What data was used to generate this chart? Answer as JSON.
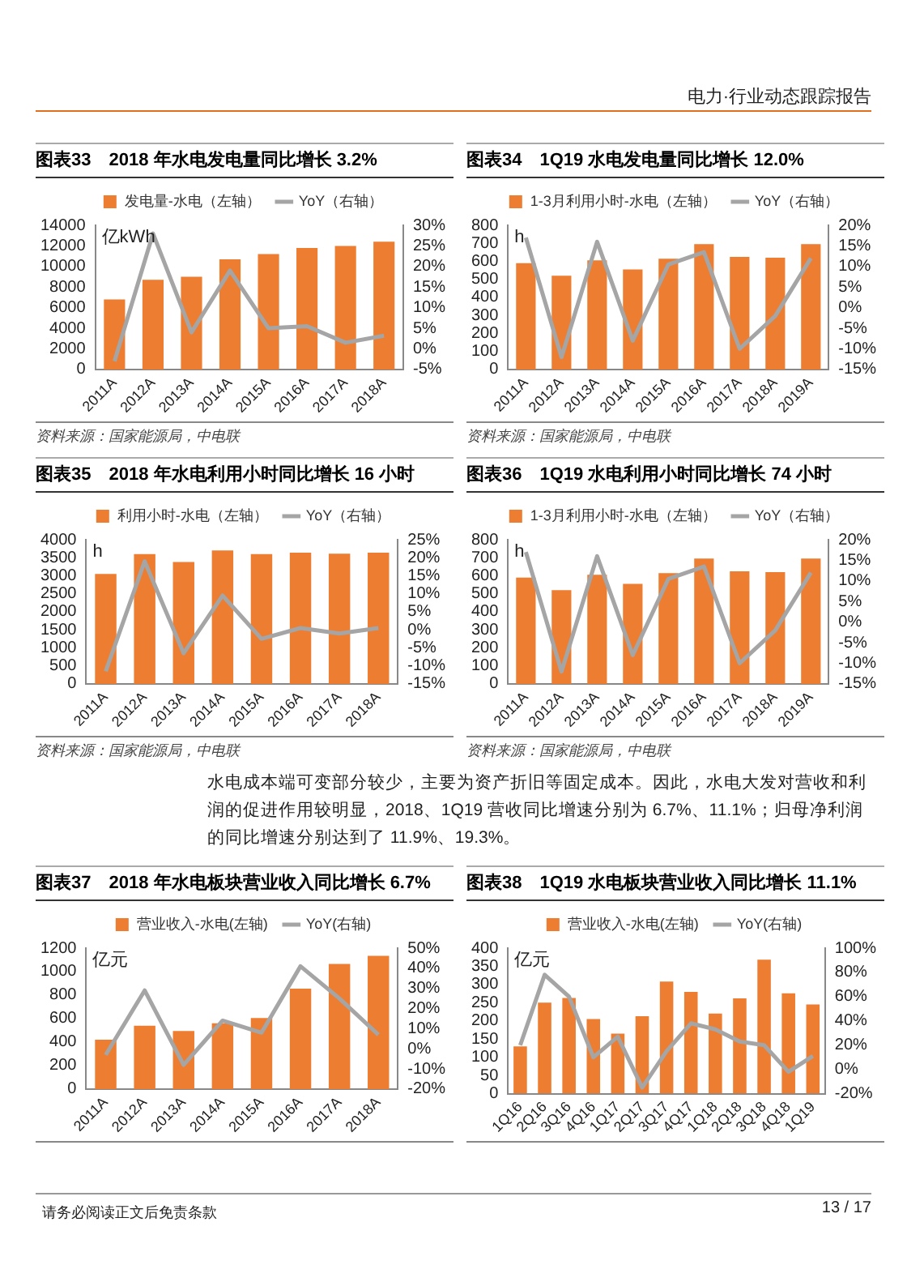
{
  "chart_data": [
    {
      "type": "bar",
      "title": "图表33　2018 年水电发电量同比增长 3.2%",
      "ylabel": "亿kWh",
      "categories": [
        "2011A",
        "2012A",
        "2013A",
        "2014A",
        "2015A",
        "2016A",
        "2017A",
        "2018A"
      ],
      "series": [
        {
          "name": "发电量-水电（左轴）",
          "type": "bar",
          "color": "#ed7d31",
          "values": [
            6800,
            8700,
            9000,
            10700,
            11200,
            11800,
            12000,
            12400
          ]
        },
        {
          "name": "YoY（右轴）",
          "type": "line",
          "axis": "y2",
          "color": "#a5a5a5",
          "values": [
            -3,
            28,
            4,
            19,
            5,
            5.5,
            1.5,
            3.2
          ]
        }
      ],
      "ylim": [
        0,
        14000
      ],
      "yticks": [
        0,
        2000,
        4000,
        6000,
        8000,
        10000,
        12000,
        14000
      ],
      "y2lim": [
        -5,
        30
      ],
      "y2ticks": [
        {
          "value": -5,
          "label": "-5%"
        },
        {
          "value": 0,
          "label": "0%"
        },
        {
          "value": 5,
          "label": "5%"
        },
        {
          "value": 10,
          "label": "10%"
        },
        {
          "value": 15,
          "label": "15%"
        },
        {
          "value": 20,
          "label": "20%"
        },
        {
          "value": 25,
          "label": "25%"
        },
        {
          "value": 30,
          "label": "30%"
        }
      ],
      "legend": "top",
      "marker": "none",
      "annotations": [
        "资料来源：国家能源局，中电联"
      ]
    },
    {
      "type": "bar",
      "title": "图表34　1Q19 水电发电量同比增长 12.0%",
      "ylabel": "h",
      "categories": [
        "2011A",
        "2012A",
        "2013A",
        "2014A",
        "2015A",
        "2016A",
        "2017A",
        "2018A",
        "2019A"
      ],
      "series": [
        {
          "name": "1-3月利用小时-水电（左轴）",
          "type": "bar",
          "color": "#ed7d31",
          "values": [
            590,
            520,
            605,
            555,
            615,
            695,
            625,
            620,
            695
          ]
        },
        {
          "name": "YoY（右轴）",
          "type": "line",
          "axis": "y2",
          "color": "#a5a5a5",
          "values": [
            17,
            -12,
            16,
            -8,
            10.5,
            13.5,
            -10,
            -2,
            12
          ]
        }
      ],
      "ylim": [
        0,
        800
      ],
      "yticks": [
        0,
        100,
        200,
        300,
        400,
        500,
        600,
        700,
        800
      ],
      "y2lim": [
        -15,
        20
      ],
      "y2ticks": [
        {
          "value": -15,
          "label": "-15%"
        },
        {
          "value": -10,
          "label": "-10%"
        },
        {
          "value": -5,
          "label": "-5%"
        },
        {
          "value": 0,
          "label": "0%"
        },
        {
          "value": 5,
          "label": "5%"
        },
        {
          "value": 10,
          "label": "10%"
        },
        {
          "value": 15,
          "label": "15%"
        },
        {
          "value": 20,
          "label": "20%"
        }
      ],
      "legend": "top",
      "marker": "none",
      "annotations": [
        "资料来源：国家能源局，中电联"
      ]
    },
    {
      "type": "bar",
      "title": "图表35　2018 年水电利用小时同比增长 16 小时",
      "ylabel": "h",
      "categories": [
        "2011A",
        "2012A",
        "2013A",
        "2014A",
        "2015A",
        "2016A",
        "2017A",
        "2018A"
      ],
      "series": [
        {
          "name": "利用小时-水电（左轴）",
          "type": "bar",
          "color": "#ed7d31",
          "values": [
            3050,
            3600,
            3380,
            3700,
            3600,
            3640,
            3610,
            3640
          ]
        },
        {
          "name": "YoY（右轴）",
          "type": "line",
          "axis": "y2",
          "color": "#a5a5a5",
          "values": [
            -11.5,
            19,
            -6.5,
            9.5,
            -2.5,
            0.5,
            -1,
            0.5
          ]
        }
      ],
      "ylim": [
        0,
        4000
      ],
      "yticks": [
        0,
        500,
        1000,
        1500,
        2000,
        2500,
        3000,
        3500,
        4000
      ],
      "y2lim": [
        -15,
        25
      ],
      "y2ticks": [
        {
          "value": -15,
          "label": "-15%"
        },
        {
          "value": -10,
          "label": "-10%"
        },
        {
          "value": -5,
          "label": "-5%"
        },
        {
          "value": 0,
          "label": "0%"
        },
        {
          "value": 5,
          "label": "5%"
        },
        {
          "value": 10,
          "label": "10%"
        },
        {
          "value": 15,
          "label": "15%"
        },
        {
          "value": 20,
          "label": "20%"
        },
        {
          "value": 25,
          "label": "25%"
        }
      ],
      "legend": "top",
      "marker": "none",
      "annotations": [
        "资料来源：国家能源局，中电联"
      ]
    },
    {
      "type": "bar",
      "title": "图表36　1Q19 水电利用小时同比增长 74 小时",
      "ylabel": "h",
      "categories": [
        "2011A",
        "2012A",
        "2013A",
        "2014A",
        "2015A",
        "2016A",
        "2017A",
        "2018A",
        "2019A"
      ],
      "series": [
        {
          "name": "1-3月利用小时-水电（左轴）",
          "type": "bar",
          "color": "#ed7d31",
          "values": [
            590,
            520,
            605,
            555,
            615,
            695,
            625,
            620,
            695
          ]
        },
        {
          "name": "YoY（右轴）",
          "type": "line",
          "axis": "y2",
          "color": "#a5a5a5",
          "values": [
            17,
            -12,
            16,
            -8,
            10.5,
            13.5,
            -10,
            -2,
            12
          ]
        }
      ],
      "ylim": [
        0,
        800
      ],
      "yticks": [
        0,
        100,
        200,
        300,
        400,
        500,
        600,
        700,
        800
      ],
      "y2lim": [
        -15,
        20
      ],
      "y2ticks": [
        {
          "value": -15,
          "label": "-15%"
        },
        {
          "value": -10,
          "label": "-10%"
        },
        {
          "value": -5,
          "label": "-5%"
        },
        {
          "value": 0,
          "label": "0%"
        },
        {
          "value": 5,
          "label": "5%"
        },
        {
          "value": 10,
          "label": "10%"
        },
        {
          "value": 15,
          "label": "15%"
        },
        {
          "value": 20,
          "label": "20%"
        }
      ],
      "legend": "top",
      "marker": "none",
      "annotations": [
        "资料来源：国家能源局，中电联"
      ]
    },
    {
      "type": "bar",
      "title": "图表37　2018 年水电板块营业收入同比增长 6.7%",
      "ylabel": "亿元",
      "categories": [
        "2011A",
        "2012A",
        "2013A",
        "2014A",
        "2015A",
        "2016A",
        "2017A",
        "2018A"
      ],
      "series": [
        {
          "name": "营业收入-水电(左轴)",
          "type": "bar",
          "color": "#ed7d31",
          "values": [
            420,
            540,
            495,
            560,
            605,
            855,
            1065,
            1135
          ]
        },
        {
          "name": "YoY(右轴)",
          "type": "line",
          "axis": "y2",
          "color": "#a5a5a5",
          "values": [
            -3,
            29,
            -8,
            14,
            8,
            41,
            25,
            7
          ]
        }
      ],
      "ylim": [
        0,
        1200
      ],
      "yticks": [
        0,
        200,
        400,
        600,
        800,
        1000,
        1200
      ],
      "y2lim": [
        -20,
        50
      ],
      "y2ticks": [
        {
          "value": -20,
          "label": "-20%"
        },
        {
          "value": -10,
          "label": "-10%"
        },
        {
          "value": 0,
          "label": "0%"
        },
        {
          "value": 10,
          "label": "10%"
        },
        {
          "value": 20,
          "label": "20%"
        },
        {
          "value": 30,
          "label": "30%"
        },
        {
          "value": 40,
          "label": "40%"
        },
        {
          "value": 50,
          "label": "50%"
        }
      ],
      "legend": "top",
      "marker": "none"
    },
    {
      "type": "bar",
      "title": "图表38　1Q19 水电板块营业收入同比增长 11.1%",
      "ylabel": "亿元",
      "categories": [
        "1Q16",
        "2Q16",
        "3Q16",
        "4Q16",
        "1Q17",
        "2Q17",
        "3Q17",
        "4Q17",
        "1Q18",
        "2Q18",
        "3Q18",
        "4Q18",
        "1Q19"
      ],
      "series": [
        {
          "name": "营业收入-水电(左轴)",
          "type": "bar",
          "color": "#ed7d31",
          "values": [
            130,
            250,
            263,
            205,
            165,
            213,
            308,
            280,
            220,
            262,
            368,
            276,
            245
          ]
        },
        {
          "name": "YoY(右轴)",
          "type": "line",
          "axis": "y2",
          "color": "#a5a5a5",
          "values": [
            20,
            78,
            60,
            10,
            27,
            -15,
            15,
            38,
            33,
            23,
            20,
            -2,
            11
          ]
        }
      ],
      "ylim": [
        0,
        400
      ],
      "yticks": [
        0,
        50,
        100,
        150,
        200,
        250,
        300,
        350,
        400
      ],
      "y2lim": [
        -20,
        100
      ],
      "y2ticks": [
        {
          "value": -20,
          "label": "-20%"
        },
        {
          "value": 0,
          "label": "0%"
        },
        {
          "value": 20,
          "label": "20%"
        },
        {
          "value": 40,
          "label": "40%"
        },
        {
          "value": 60,
          "label": "60%"
        },
        {
          "value": 80,
          "label": "80%"
        },
        {
          "value": 100,
          "label": "100%"
        }
      ],
      "legend": "top",
      "marker": "none"
    },
    {
      "type": "other",
      "annotations": [
        "电力·行业动态跟踪报告",
        "水电成本端可变部分较少，主要为资产折旧等固定成本。因此，水电大发对营收和利润的促进作用较明显，2018、1Q19 营收同比增速分别为 6.7%、11.1%；归母净利润的同比增速分别达到了 11.9%、19.3%。",
        "请务必阅读正文后免责条款",
        "13 / 17"
      ]
    }
  ]
}
